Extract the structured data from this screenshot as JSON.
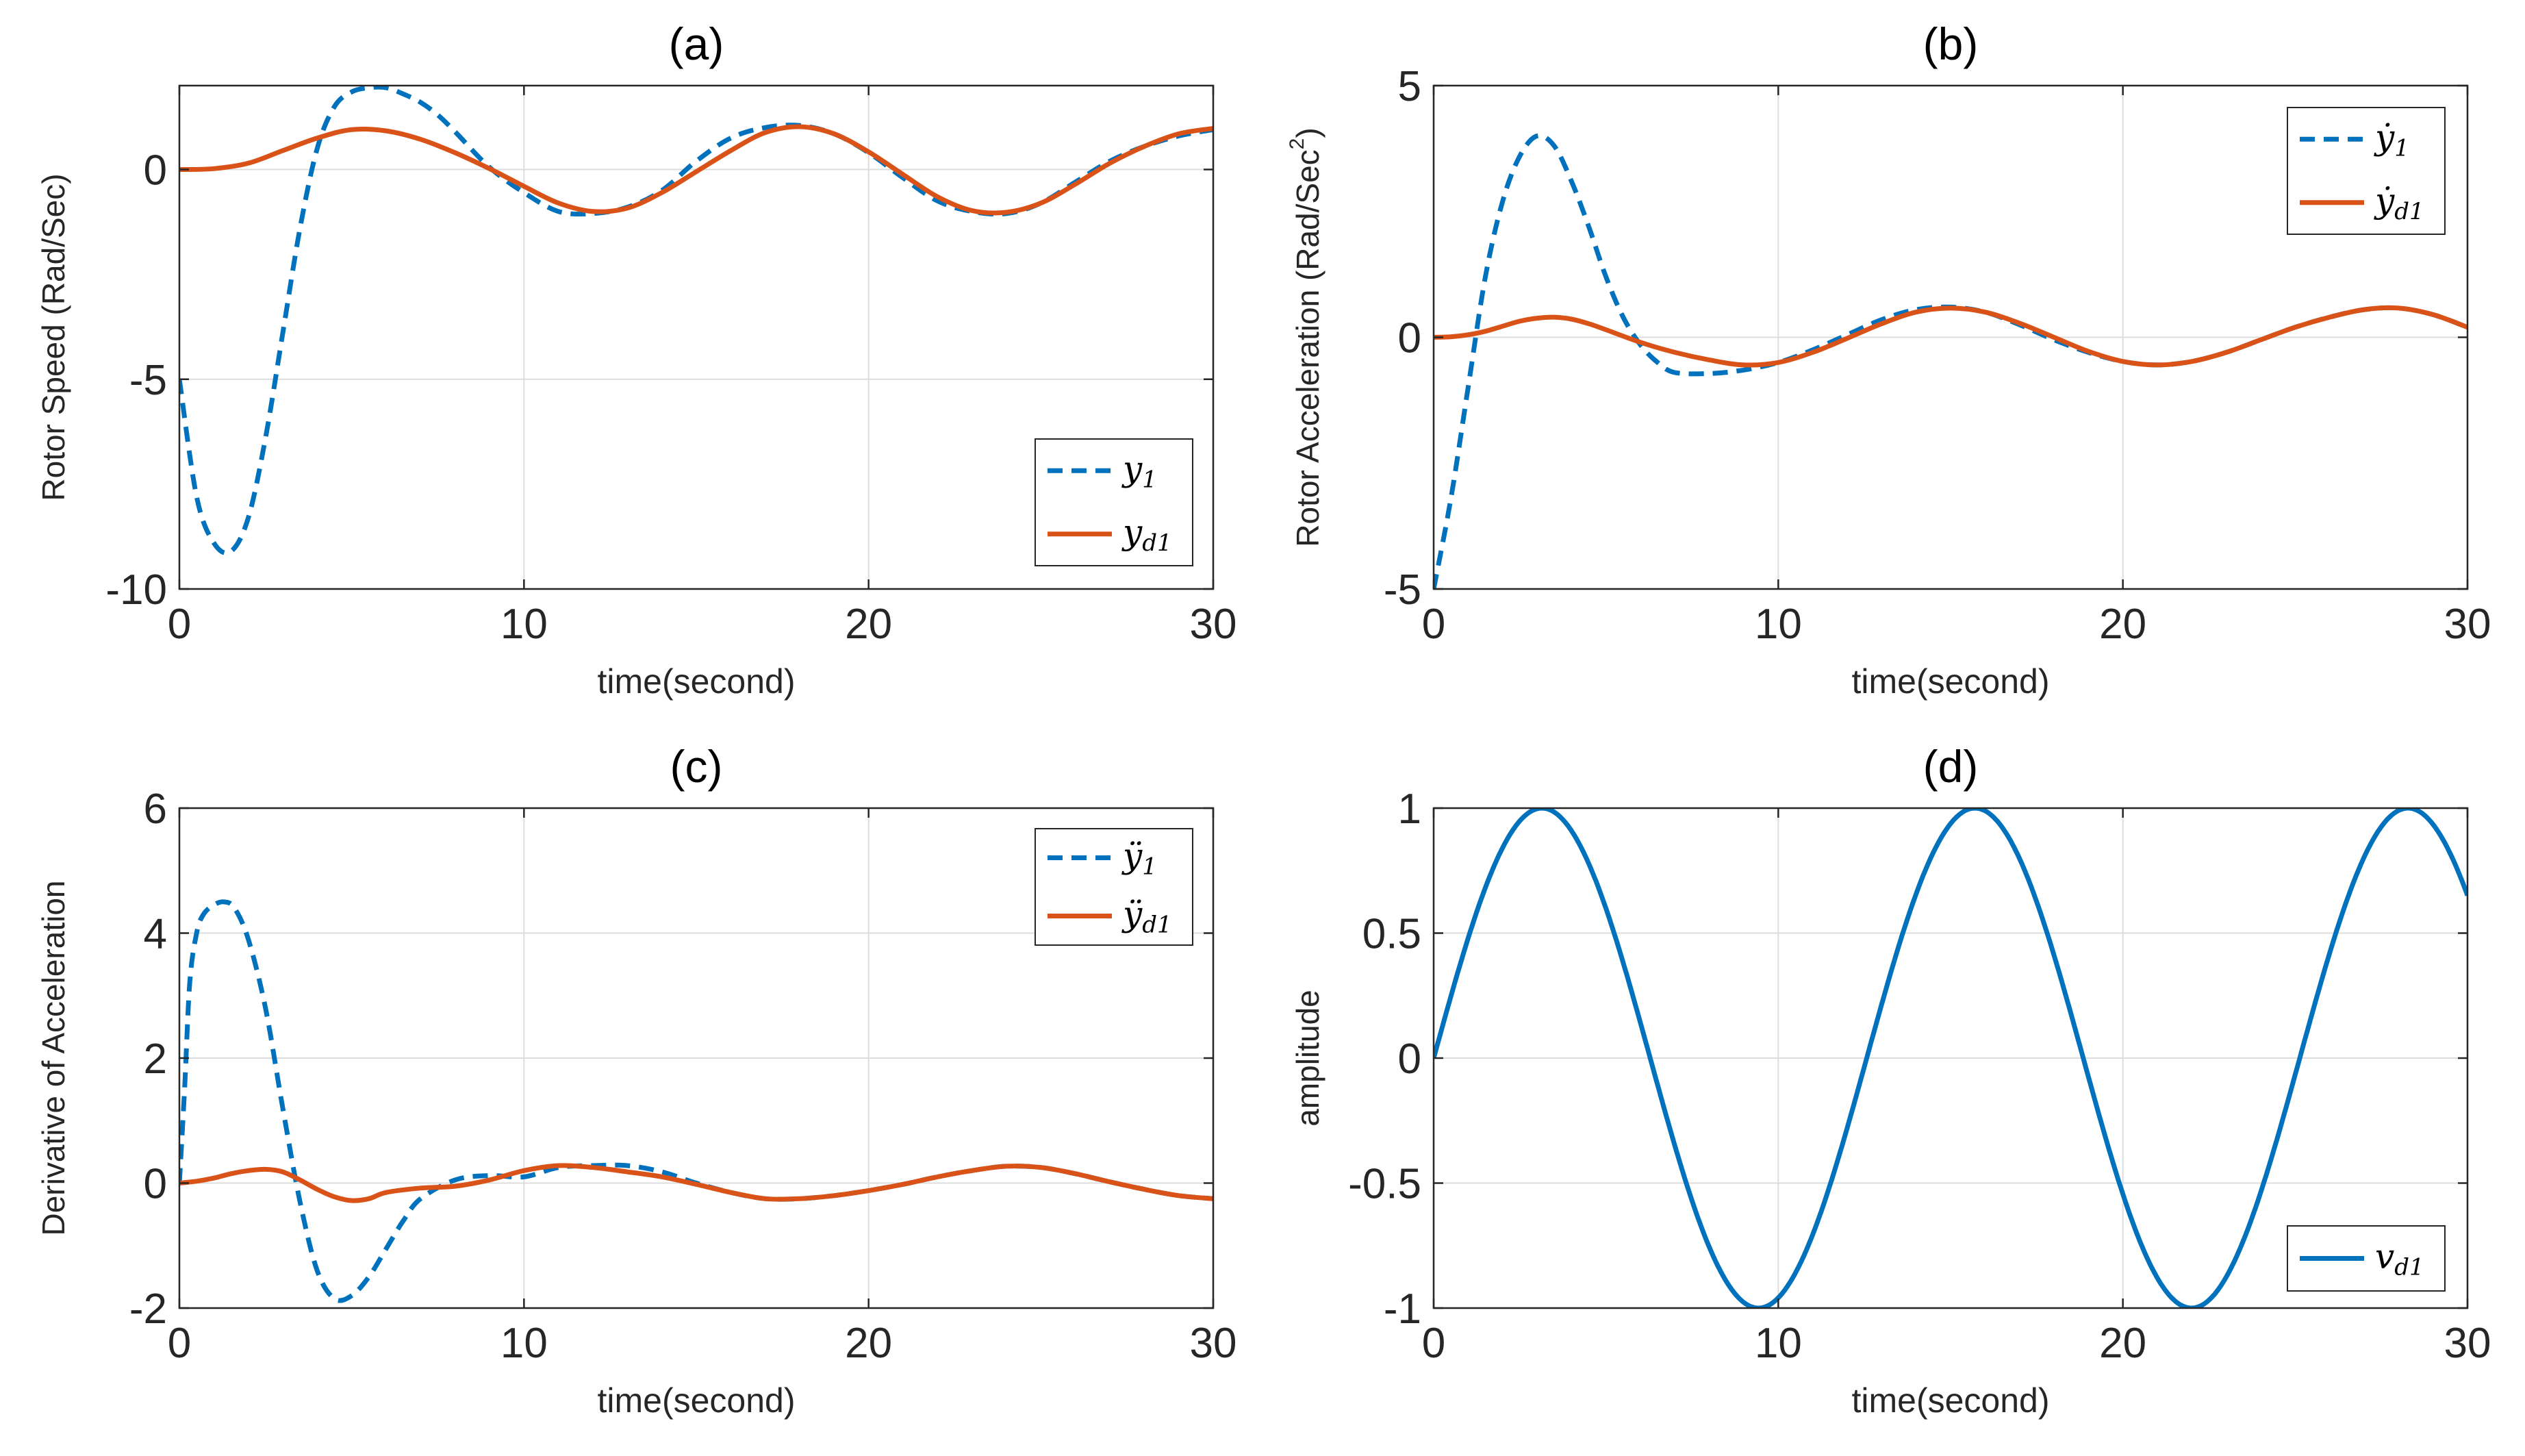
{
  "colors": {
    "series_blue": "#0072BD",
    "series_orange": "#D95319",
    "grid": "#dcdcdc",
    "axis": "#262626",
    "background": "#ffffff"
  },
  "chart_data": [
    {
      "id": "a",
      "type": "line",
      "title": "(a)",
      "xlabel": "time(second)",
      "ylabel": "Rotor Speed (Rad/Sec)",
      "xlim": [
        0,
        30
      ],
      "ylim": [
        -10,
        2
      ],
      "xticks": [
        0,
        10,
        20,
        30
      ],
      "yticks": [
        -10,
        -5,
        0
      ],
      "ytick_labels": [
        "-10",
        "-5",
        "0"
      ],
      "grid": true,
      "legend": {
        "position": "bottom-right",
        "entries": [
          {
            "base": "y",
            "sub": "1",
            "style": "dashed"
          },
          {
            "base": "y",
            "sub": "d1",
            "style": "solid"
          }
        ]
      },
      "series": [
        {
          "name": "y1",
          "style": "dashed",
          "color": "#0072BD",
          "x": [
            0,
            0.5,
            1,
            1.5,
            2,
            2.5,
            3,
            3.5,
            4,
            4.5,
            5,
            5.5,
            6,
            6.5,
            7,
            7.5,
            8,
            9,
            10,
            11,
            12,
            13,
            14,
            15,
            16,
            17,
            18,
            19,
            20,
            21,
            22,
            23,
            24,
            25,
            26,
            27,
            28,
            29,
            30
          ],
          "y": [
            -5,
            -7.8,
            -8.9,
            -9.1,
            -8.3,
            -6.4,
            -3.9,
            -1.4,
            0.5,
            1.5,
            1.85,
            1.95,
            1.95,
            1.8,
            1.6,
            1.3,
            0.9,
            0.05,
            -0.55,
            -1.0,
            -1.05,
            -0.9,
            -0.5,
            0.2,
            0.75,
            1.0,
            1.05,
            0.85,
            0.4,
            -0.2,
            -0.75,
            -1.0,
            -1.05,
            -0.8,
            -0.3,
            0.2,
            0.55,
            0.8,
            0.95
          ]
        },
        {
          "name": "yd1",
          "style": "solid",
          "color": "#D95319",
          "x": [
            0,
            1,
            2,
            3,
            4,
            5,
            6,
            7,
            8,
            9,
            10,
            11,
            12,
            13,
            14,
            15,
            16,
            17,
            18,
            19,
            20,
            21,
            22,
            23,
            24,
            25,
            26,
            27,
            28,
            29,
            30
          ],
          "y": [
            0,
            0.02,
            0.15,
            0.45,
            0.75,
            0.95,
            0.92,
            0.72,
            0.4,
            0.02,
            -0.4,
            -0.8,
            -1.0,
            -0.92,
            -0.55,
            -0.05,
            0.45,
            0.88,
            1.02,
            0.85,
            0.42,
            -0.12,
            -0.65,
            -0.98,
            -1.02,
            -0.8,
            -0.35,
            0.15,
            0.55,
            0.85,
            0.98
          ]
        }
      ]
    },
    {
      "id": "b",
      "type": "line",
      "title": "(b)",
      "xlabel": "time(second)",
      "ylabel": "Rotor Acceleration (Rad/Sec",
      "ylabel_sup": "2",
      "ylabel_end": ")",
      "xlim": [
        0,
        30
      ],
      "ylim": [
        -5,
        5
      ],
      "xticks": [
        0,
        10,
        20,
        30
      ],
      "yticks": [
        -5,
        0,
        5
      ],
      "ytick_labels": [
        "-5",
        "0",
        "5"
      ],
      "grid": true,
      "legend": {
        "position": "top-right",
        "entries": [
          {
            "base": "ẏ",
            "sub": "1",
            "style": "dashed"
          },
          {
            "base": "ẏ",
            "sub": "d1",
            "style": "solid"
          }
        ]
      },
      "series": [
        {
          "name": "ydot1",
          "style": "dashed",
          "color": "#0072BD",
          "x": [
            0,
            0.5,
            1,
            1.5,
            2,
            2.5,
            3,
            3.5,
            4,
            4.5,
            5,
            5.5,
            6,
            6.5,
            7,
            8,
            9,
            10,
            11,
            12,
            13,
            14,
            15,
            16,
            17,
            18,
            19,
            20,
            21,
            22,
            23,
            24,
            25,
            26,
            27,
            28,
            29,
            30
          ],
          "y": [
            -5,
            -3.2,
            -1.0,
            1.2,
            2.7,
            3.6,
            4.0,
            3.8,
            3.1,
            2.2,
            1.2,
            0.4,
            -0.15,
            -0.5,
            -0.7,
            -0.72,
            -0.65,
            -0.5,
            -0.25,
            0.05,
            0.35,
            0.55,
            0.6,
            0.5,
            0.25,
            -0.05,
            -0.3,
            -0.48,
            -0.55,
            -0.48,
            -0.3,
            -0.05,
            0.2,
            0.4,
            0.55,
            0.58,
            0.45,
            0.2
          ]
        },
        {
          "name": "ydotd1",
          "style": "solid",
          "color": "#D95319",
          "x": [
            0,
            0.5,
            1,
            1.5,
            2,
            2.5,
            3,
            3.5,
            4,
            4.5,
            5,
            6,
            7,
            8,
            9,
            10,
            11,
            12,
            13,
            14,
            15,
            16,
            17,
            18,
            19,
            20,
            21,
            22,
            23,
            24,
            25,
            26,
            27,
            28,
            29,
            30
          ],
          "y": [
            0,
            0.01,
            0.05,
            0.12,
            0.22,
            0.32,
            0.38,
            0.4,
            0.36,
            0.27,
            0.15,
            -0.1,
            -0.3,
            -0.45,
            -0.55,
            -0.5,
            -0.3,
            -0.02,
            0.27,
            0.5,
            0.58,
            0.5,
            0.28,
            0.0,
            -0.28,
            -0.48,
            -0.55,
            -0.48,
            -0.3,
            -0.05,
            0.2,
            0.4,
            0.55,
            0.58,
            0.45,
            0.2
          ]
        }
      ]
    },
    {
      "id": "c",
      "type": "line",
      "title": "(c)",
      "xlabel": "time(second)",
      "ylabel": "Derivative of Acceleration",
      "xlim": [
        0,
        30
      ],
      "ylim": [
        -2,
        6
      ],
      "xticks": [
        0,
        10,
        20,
        30
      ],
      "yticks": [
        -2,
        0,
        2,
        4,
        6
      ],
      "ytick_labels": [
        "-2",
        "0",
        "2",
        "4",
        "6"
      ],
      "grid": true,
      "legend": {
        "position": "top-right",
        "entries": [
          {
            "base": "ÿ",
            "sub": "1",
            "style": "dashed"
          },
          {
            "base": "ÿ",
            "sub": "d1",
            "style": "solid"
          }
        ]
      },
      "series": [
        {
          "name": "yddot1",
          "style": "dashed",
          "color": "#0072BD",
          "x": [
            0,
            0.15,
            0.3,
            0.5,
            0.7,
            1.0,
            1.3,
            1.6,
            2.0,
            2.5,
            3.0,
            3.5,
            4.0,
            4.5,
            5.0,
            5.5,
            6.0,
            6.5,
            7.0,
            8.0,
            9.0,
            10.0,
            11.0,
            12.0,
            13.0,
            14.0,
            15.0,
            16.0,
            17.0,
            18.0,
            19.0,
            20.0,
            21.0,
            22.0,
            23.0,
            24.0,
            25.0,
            26.0,
            27.0,
            28.0,
            29.0,
            30.0
          ],
          "y": [
            0,
            1.5,
            3.2,
            4.0,
            4.3,
            4.45,
            4.5,
            4.4,
            3.9,
            2.8,
            1.2,
            -0.3,
            -1.4,
            -1.85,
            -1.8,
            -1.5,
            -1.05,
            -0.6,
            -0.25,
            0.05,
            0.12,
            0.1,
            0.25,
            0.28,
            0.28,
            0.18,
            0.0,
            -0.15,
            -0.25,
            -0.25,
            -0.2,
            -0.12,
            -0.02,
            0.1,
            0.2,
            0.27,
            0.25,
            0.15,
            0.02,
            -0.1,
            -0.2,
            -0.25
          ]
        },
        {
          "name": "ydd_d1",
          "style": "solid",
          "color": "#D95319",
          "x": [
            0,
            0.5,
            1,
            1.5,
            2,
            2.5,
            3,
            3.5,
            4,
            4.5,
            5,
            5.5,
            6,
            7,
            8,
            9,
            10,
            11,
            12,
            13,
            14,
            15,
            16,
            17,
            18,
            19,
            20,
            21,
            22,
            23,
            24,
            25,
            26,
            27,
            28,
            29,
            30
          ],
          "y": [
            0,
            0.03,
            0.08,
            0.15,
            0.2,
            0.22,
            0.18,
            0.05,
            -0.1,
            -0.22,
            -0.28,
            -0.25,
            -0.15,
            -0.08,
            -0.05,
            0.05,
            0.2,
            0.28,
            0.25,
            0.18,
            0.1,
            -0.02,
            -0.15,
            -0.25,
            -0.25,
            -0.2,
            -0.12,
            -0.02,
            0.1,
            0.2,
            0.27,
            0.25,
            0.15,
            0.02,
            -0.1,
            -0.2,
            -0.25
          ]
        }
      ]
    },
    {
      "id": "d",
      "type": "line",
      "title": "(d)",
      "xlabel": "time(second)",
      "ylabel": "amplitude",
      "xlim": [
        0,
        30
      ],
      "ylim": [
        -1,
        1
      ],
      "xticks": [
        0,
        10,
        20,
        30
      ],
      "yticks": [
        -1,
        -0.5,
        0,
        0.5,
        1
      ],
      "ytick_labels": [
        "-1",
        "-0.5",
        "0",
        "0.5",
        "1"
      ],
      "grid": true,
      "legend": {
        "position": "bottom-right",
        "entries": [
          {
            "base": "v",
            "sub": "d1",
            "style": "solid"
          }
        ]
      },
      "series": [
        {
          "name": "vd1",
          "style": "solid",
          "color": "#0072BD",
          "function": "sin(0.5*t)",
          "x_range": [
            0,
            30
          ]
        }
      ]
    }
  ]
}
